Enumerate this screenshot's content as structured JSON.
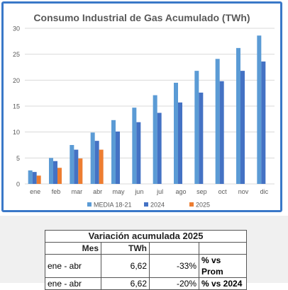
{
  "chart_data": {
    "type": "bar",
    "title": "Consumo Industrial de Gas Acumulado (TWh)",
    "categories": [
      "ene",
      "feb",
      "mar",
      "abr",
      "may",
      "jun",
      "jul",
      "ago",
      "sep",
      "oct",
      "nov",
      "dic"
    ],
    "series": [
      {
        "name": "MEDIA 18-21",
        "color": "#5b9bd5",
        "values": [
          2.6,
          5.0,
          7.5,
          9.9,
          12.3,
          14.7,
          17.1,
          19.5,
          21.8,
          24.1,
          26.2,
          28.6
        ]
      },
      {
        "name": "2024",
        "color": "#4472c4",
        "values": [
          2.3,
          4.4,
          6.6,
          8.3,
          10.1,
          11.9,
          13.7,
          15.7,
          17.6,
          19.8,
          21.8,
          23.6
        ]
      },
      {
        "name": "2025",
        "color": "#ed7d31",
        "values": [
          1.6,
          3.1,
          4.9,
          6.6,
          null,
          null,
          null,
          null,
          null,
          null,
          null,
          null
        ]
      }
    ],
    "yticks": [
      "0",
      "5",
      "10",
      "15",
      "20",
      "25",
      "30"
    ],
    "ylim": [
      0,
      30
    ],
    "grid": true,
    "legend": "bottom"
  },
  "table": {
    "title": "Variación acumulada 2025",
    "headers": {
      "mes": "Mes",
      "twh": "TWh"
    },
    "rows": [
      {
        "mes": "ene - abr",
        "twh": "6,62",
        "pct": "-33%",
        "label": "% vs Prom"
      },
      {
        "mes": "ene - abr",
        "twh": "6,62",
        "pct": "-20%",
        "label": "% vs 2024"
      }
    ]
  }
}
